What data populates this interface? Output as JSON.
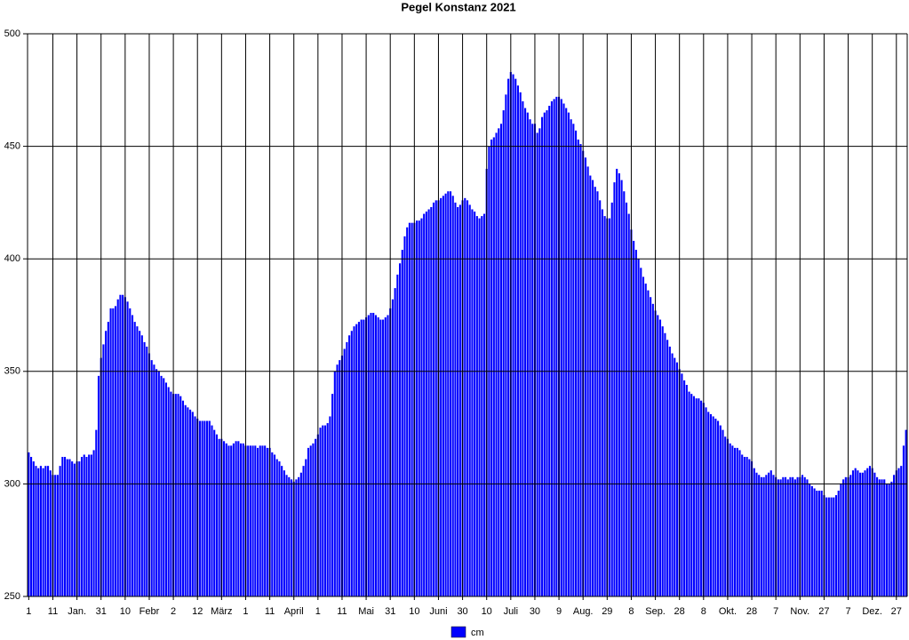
{
  "chart_data": {
    "type": "bar",
    "title": "Pegel Konstanz 2021",
    "categories": [
      "1",
      null,
      null,
      null,
      null,
      null,
      null,
      null,
      null,
      null,
      "11",
      null,
      null,
      null,
      null,
      null,
      null,
      null,
      null,
      null,
      "Jan.",
      null,
      null,
      null,
      null,
      null,
      null,
      null,
      null,
      null,
      "31",
      null,
      null,
      null,
      null,
      null,
      null,
      null,
      null,
      null,
      "10",
      null,
      null,
      null,
      null,
      null,
      null,
      null,
      null,
      null,
      "Febr",
      null,
      null,
      null,
      null,
      null,
      null,
      null,
      null,
      null,
      "2",
      null,
      null,
      null,
      null,
      null,
      null,
      null,
      null,
      null,
      "12",
      null,
      null,
      null,
      null,
      null,
      null,
      null,
      null,
      null,
      "März",
      null,
      null,
      null,
      null,
      null,
      null,
      null,
      null,
      null,
      "1",
      null,
      null,
      null,
      null,
      null,
      null,
      null,
      null,
      null,
      "11",
      null,
      null,
      null,
      null,
      null,
      null,
      null,
      null,
      null,
      "April",
      null,
      null,
      null,
      null,
      null,
      null,
      null,
      null,
      null,
      "1",
      null,
      null,
      null,
      null,
      null,
      null,
      null,
      null,
      null,
      "11",
      null,
      null,
      null,
      null,
      null,
      null,
      null,
      null,
      null,
      "Mai",
      null,
      null,
      null,
      null,
      null,
      null,
      null,
      null,
      null,
      "31",
      null,
      null,
      null,
      null,
      null,
      null,
      null,
      null,
      null,
      "10",
      null,
      null,
      null,
      null,
      null,
      null,
      null,
      null,
      null,
      "Juni",
      null,
      null,
      null,
      null,
      null,
      null,
      null,
      null,
      null,
      "30",
      null,
      null,
      null,
      null,
      null,
      null,
      null,
      null,
      null,
      "10",
      null,
      null,
      null,
      null,
      null,
      null,
      null,
      null,
      null,
      "Juli",
      null,
      null,
      null,
      null,
      null,
      null,
      null,
      null,
      null,
      "30",
      null,
      null,
      null,
      null,
      null,
      null,
      null,
      null,
      null,
      "9",
      null,
      null,
      null,
      null,
      null,
      null,
      null,
      null,
      null,
      "Aug.",
      null,
      null,
      null,
      null,
      null,
      null,
      null,
      null,
      null,
      "29",
      null,
      null,
      null,
      null,
      null,
      null,
      null,
      null,
      null,
      "8",
      null,
      null,
      null,
      null,
      null,
      null,
      null,
      null,
      null,
      "Sep.",
      null,
      null,
      null,
      null,
      null,
      null,
      null,
      null,
      null,
      "28",
      null,
      null,
      null,
      null,
      null,
      null,
      null,
      null,
      null,
      "8",
      null,
      null,
      null,
      null,
      null,
      null,
      null,
      null,
      null,
      "Okt.",
      null,
      null,
      null,
      null,
      null,
      null,
      null,
      null,
      null,
      "28",
      null,
      null,
      null,
      null,
      null,
      null,
      null,
      null,
      null,
      "7",
      null,
      null,
      null,
      null,
      null,
      null,
      null,
      null,
      null,
      "Nov.",
      null,
      null,
      null,
      null,
      null,
      null,
      null,
      null,
      null,
      "27",
      null,
      null,
      null,
      null,
      null,
      null,
      null,
      null,
      null,
      "7",
      null,
      null,
      null,
      null,
      null,
      null,
      null,
      null,
      null,
      "Dez.",
      null,
      null,
      null,
      null,
      null,
      null,
      null,
      null,
      null,
      "27",
      null,
      null,
      null,
      null
    ],
    "series": [
      {
        "name": "cm",
        "color": "#0000ff",
        "values": [
          314,
          312,
          310,
          308,
          307,
          308,
          307,
          308,
          308,
          306,
          304,
          304,
          304,
          308,
          312,
          312,
          311,
          311,
          310,
          309,
          310,
          310,
          312,
          313,
          312,
          313,
          313,
          315,
          324,
          348,
          356,
          362,
          368,
          372,
          378,
          378,
          379,
          382,
          384,
          384,
          383,
          381,
          378,
          375,
          372,
          370,
          368,
          366,
          363,
          361,
          358,
          355,
          353,
          351,
          350,
          348,
          347,
          345,
          343,
          341,
          340,
          340,
          340,
          339,
          337,
          335,
          334,
          333,
          332,
          330,
          329,
          328,
          328,
          328,
          328,
          328,
          326,
          324,
          322,
          320,
          320,
          319,
          318,
          317,
          317,
          318,
          319,
          319,
          318,
          318,
          317,
          317,
          317,
          317,
          317,
          316,
          317,
          317,
          317,
          316,
          316,
          314,
          313,
          311,
          310,
          308,
          306,
          304,
          303,
          302,
          301,
          302,
          303,
          305,
          308,
          311,
          316,
          317,
          318,
          320,
          322,
          325,
          326,
          326,
          327,
          330,
          340,
          350,
          353,
          355,
          357,
          360,
          363,
          366,
          368,
          370,
          371,
          372,
          373,
          373,
          374,
          375,
          376,
          376,
          375,
          374,
          373,
          373,
          374,
          375,
          378,
          382,
          387,
          393,
          398,
          404,
          410,
          414,
          416,
          416,
          416,
          417,
          417,
          418,
          420,
          421,
          422,
          423,
          425,
          426,
          426,
          427,
          428,
          429,
          430,
          430,
          428,
          425,
          423,
          424,
          426,
          427,
          426,
          424,
          422,
          421,
          419,
          418,
          419,
          420,
          440,
          450,
          453,
          454,
          456,
          458,
          460,
          466,
          473,
          480,
          483,
          482,
          480,
          477,
          474,
          470,
          467,
          465,
          462,
          460,
          460,
          456,
          458,
          463,
          465,
          466,
          468,
          470,
          471,
          472,
          472,
          471,
          469,
          467,
          465,
          462,
          460,
          457,
          453,
          451,
          448,
          445,
          441,
          437,
          435,
          432,
          430,
          426,
          422,
          419,
          418,
          418,
          425,
          434,
          440,
          438,
          435,
          430,
          425,
          420,
          413,
          408,
          404,
          400,
          396,
          392,
          389,
          386,
          383,
          380,
          377,
          375,
          373,
          370,
          367,
          364,
          361,
          358,
          356,
          354,
          351,
          349,
          346,
          344,
          341,
          340,
          339,
          338,
          338,
          337,
          336,
          334,
          332,
          331,
          330,
          329,
          328,
          326,
          324,
          321,
          320,
          318,
          317,
          316,
          316,
          315,
          313,
          312,
          312,
          311,
          310,
          307,
          305,
          304,
          303,
          303,
          304,
          305,
          306,
          304,
          303,
          302,
          302,
          303,
          303,
          302,
          303,
          303,
          302,
          303,
          303,
          304,
          303,
          302,
          300,
          299,
          298,
          297,
          297,
          297,
          295,
          294,
          294,
          294,
          294,
          295,
          297,
          300,
          302,
          303,
          303,
          304,
          306,
          307,
          306,
          305,
          305,
          306,
          307,
          308,
          307,
          305,
          303,
          302,
          302,
          302,
          300,
          300,
          301,
          304,
          306,
          307,
          308,
          317,
          324
        ]
      }
    ],
    "ylim": [
      250,
      500
    ],
    "yticks": [
      250,
      300,
      350,
      400,
      450,
      500
    ],
    "grid": true,
    "legend": "bottom"
  }
}
